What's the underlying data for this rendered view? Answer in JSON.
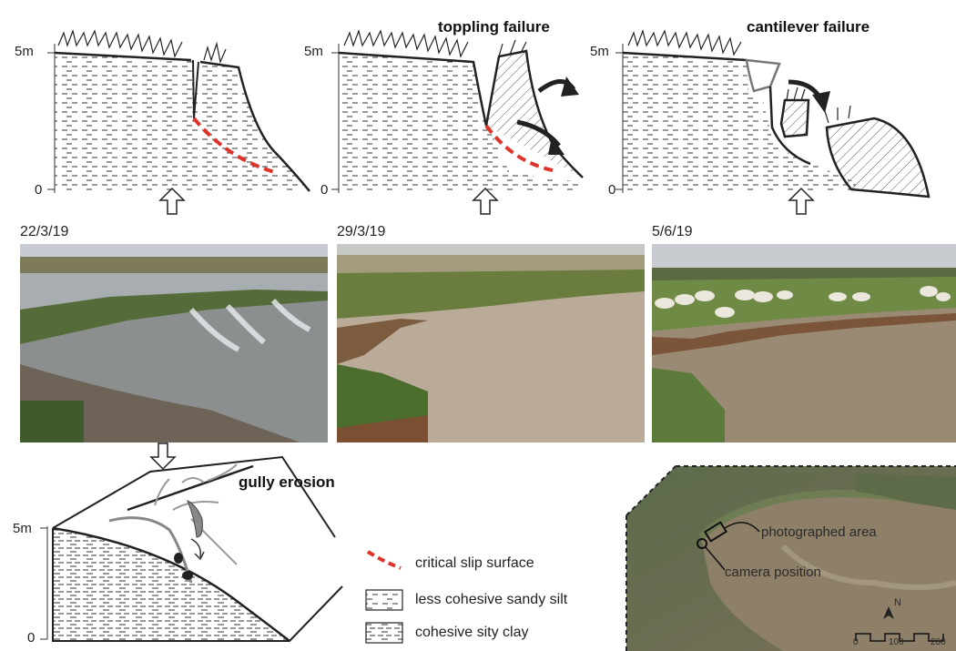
{
  "panels": {
    "stage1": {
      "label_top": "5m",
      "label_bottom": "0"
    },
    "stage2": {
      "title": "toppling failure",
      "label_top": "5m",
      "label_bottom": "0"
    },
    "stage3": {
      "title": "cantilever failure",
      "label_top": "5m",
      "label_bottom": "0"
    },
    "gully": {
      "title": "gully erosion",
      "label_top": "5m",
      "label_bottom": "0"
    }
  },
  "photos": [
    {
      "date": "22/3/19"
    },
    {
      "date": "29/3/19"
    },
    {
      "date": "5/6/19"
    }
  ],
  "legend": {
    "items": [
      {
        "label": "critical slip surface",
        "color": "#e0342b"
      },
      {
        "label": "less cohesive sandy silt"
      },
      {
        "label": "cohesive sity clay"
      }
    ]
  },
  "map": {
    "photographed_area": "photographed area",
    "camera_position": "camera position",
    "scale_ticks": [
      "0",
      "100",
      "200"
    ],
    "north": "N"
  },
  "colors": {
    "slip": "#e0342b",
    "ink": "#222222",
    "hatch": "#555555"
  }
}
